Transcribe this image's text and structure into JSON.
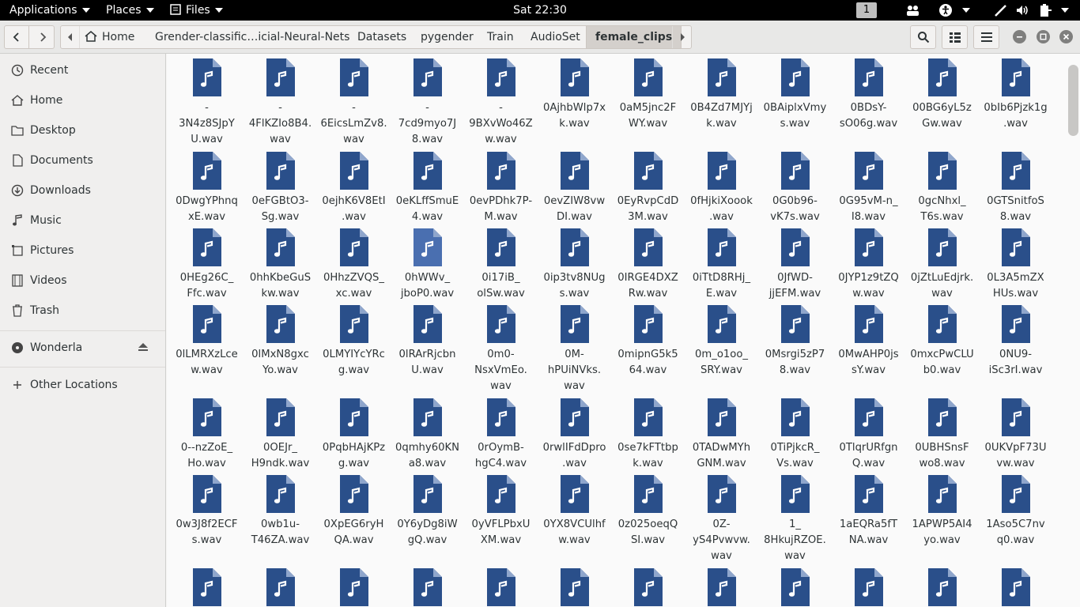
{
  "topbar": {
    "applications": "Applications",
    "places": "Places",
    "files": "Files",
    "clock": "Sat 22:30",
    "workspace": "1"
  },
  "header": {
    "breadcrumbs": [
      "Home",
      "Grender-classific…icial-Neural-Nets",
      "Datasets",
      "pygender",
      "Train",
      "AudioSet",
      "female_clips"
    ]
  },
  "sidebar": {
    "items": [
      {
        "label": "Recent",
        "icon": "clock-icon"
      },
      {
        "label": "Home",
        "icon": "home-icon"
      },
      {
        "label": "Desktop",
        "icon": "folder-icon"
      },
      {
        "label": "Documents",
        "icon": "document-icon"
      },
      {
        "label": "Downloads",
        "icon": "download-icon"
      },
      {
        "label": "Music",
        "icon": "music-icon"
      },
      {
        "label": "Pictures",
        "icon": "picture-icon"
      },
      {
        "label": "Videos",
        "icon": "video-icon"
      },
      {
        "label": "Trash",
        "icon": "trash-icon"
      }
    ],
    "devices": [
      {
        "label": "Wonderla",
        "icon": "drive-icon"
      }
    ],
    "other": {
      "label": "Other Locations",
      "icon": "plus-icon"
    }
  },
  "files": [
    "-3N4z8SJpYU.wav",
    "-4FlKZIo8B4.wav",
    "-6EicsLmZv8.wav",
    "-7cd9myo7J8.wav",
    "-9BXvWo46Zw.wav",
    "0AjhbWlp7xk.wav",
    "0aM5jnc2FWY.wav",
    "0B4Zd7MJYjk.wav",
    "0BAiplxVmys.wav",
    "0BDsY-sO06g.wav",
    "00BG6yL5zGw.wav",
    "0bIb6Pjzk1g.wav",
    "0DwgYPhnqxE.wav",
    "0eFGBtO3-Sg.wav",
    "0ejhK6V8EtI.wav",
    "0eKLffSmuE4.wav",
    "0evPDhk7P-M.wav",
    "0evZIW8vwDI.wav",
    "0EyRvpCdD3M.wav",
    "0fHjkiXoook.wav",
    "0G0b96-vK7s.wav",
    "0G95vM-n_I8.wav",
    "0gcNhxl_T6s.wav",
    "0GTSnitfoS8.wav",
    "0HEg26C_Ffc.wav",
    "0hhKbeGuSkw.wav",
    "0HhzZVQS_xc.wav",
    "0hWWv_jboP0.wav",
    "0i17iB_olSw.wav",
    "0ip3tv8NUgs.wav",
    "0IRGE4DXZRw.wav",
    "0iTtD8RHj_E.wav",
    "0JfWD-jjEFM.wav",
    "0JYP1z9tZQw.wav",
    "0jZtLuEdjrk.wav",
    "0L3A5mZXHUs.wav",
    "0lLMRXzLcew.wav",
    "0lMxN8gxcYo.wav",
    "0LMYIYcYRcg.wav",
    "0lRArRjcbnU.wav",
    "0m0-NsxVmEo.wav",
    "0M-hPUiNVks.wav",
    "0mipnG5k564.wav",
    "0m_o1oo_SRY.wav",
    "0Msrgi5zP78.wav",
    "0MwAHP0jssY.wav",
    "0mxcPwCLUb0.wav",
    "0NU9-iSc3rI.wav",
    "0--nzZoE_Ho.wav",
    "0OEJr_H9ndk.wav",
    "0PqbHAjKPzg.wav",
    "0qmhy60KNa8.wav",
    "0rOymB-hgC4.wav",
    "0rwlIFdDpro.wav",
    "0se7kFTtbpk.wav",
    "0TADwMYhGNM.wav",
    "0TiPjkcR_Vs.wav",
    "0TlqrURfgnQ.wav",
    "0UBHSnsFwo8.wav",
    "0UKVpF73Uvw.wav",
    "0w3J8f2ECFs.wav",
    "0wb1u-T46ZA.wav",
    "0XpEG6ryHQA.wav",
    "0Y6yDg8iWgQ.wav",
    "0yVFLPbxUXM.wav",
    "0YX8VCUlhfw.wav",
    "0z025oeqQSI.wav",
    "0Z-yS4Pvwvw.wav",
    "1_8HkujRZOE.wav",
    "1aEQRa5fTNA.wav",
    "1APWP5AI4yo.wav",
    "1Aso5C7nvq0.wav",
    "",
    "",
    "",
    "",
    "",
    "",
    "",
    "",
    "",
    "",
    "",
    ""
  ],
  "file_name_lines": [
    [
      "-",
      "3N4z8SJpY",
      "U.wav"
    ],
    [
      "-",
      "4FlKZIo8B4.",
      "wav"
    ],
    [
      "-",
      "6EicsLmZv8.",
      "wav"
    ],
    [
      "-",
      "7cd9myo7J",
      "8.wav"
    ],
    [
      "-",
      "9BXvWo46Z",
      "w.wav"
    ],
    [
      "0AjhbWlp7x",
      "k.wav"
    ],
    [
      "0aM5jnc2F",
      "WY.wav"
    ],
    [
      "0B4Zd7MJYj",
      "k.wav"
    ],
    [
      "0BAiplxVmy",
      "s.wav"
    ],
    [
      "0BDsY-",
      "sO06g.wav"
    ],
    [
      "00BG6yL5z",
      "Gw.wav"
    ],
    [
      "0bIb6Pjzk1g",
      ".wav"
    ],
    [
      "0DwgYPhnq",
      "xE.wav"
    ],
    [
      "0eFGBtO3-",
      "Sg.wav"
    ],
    [
      "0ejhK6V8EtI",
      ".wav"
    ],
    [
      "0eKLffSmuE",
      "4.wav"
    ],
    [
      "0evPDhk7P-",
      "M.wav"
    ],
    [
      "0evZIW8vw",
      "DI.wav"
    ],
    [
      "0EyRvpCdD",
      "3M.wav"
    ],
    [
      "0fHjkiXoook",
      ".wav"
    ],
    [
      "0G0b96-",
      "vK7s.wav"
    ],
    [
      "0G95vM-n_",
      "I8.wav"
    ],
    [
      "0gcNhxl_",
      "T6s.wav"
    ],
    [
      "0GTSnitfoS",
      "8.wav"
    ],
    [
      "0HEg26C_",
      "Ffc.wav"
    ],
    [
      "0hhKbeGuS",
      "kw.wav"
    ],
    [
      "0HhzZVQS_",
      "xc.wav"
    ],
    [
      "0hWWv_",
      "jboP0.wav"
    ],
    [
      "0i17iB_",
      "olSw.wav"
    ],
    [
      "0ip3tv8NUg",
      "s.wav"
    ],
    [
      "0IRGE4DXZ",
      "Rw.wav"
    ],
    [
      "0iTtD8RHj_",
      "E.wav"
    ],
    [
      "0JfWD-",
      "jjEFM.wav"
    ],
    [
      "0JYP1z9tZQ",
      "w.wav"
    ],
    [
      "0jZtLuEdjrk.",
      "wav"
    ],
    [
      "0L3A5mZX",
      "HUs.wav"
    ],
    [
      "0lLMRXzLce",
      "w.wav"
    ],
    [
      "0lMxN8gxc",
      "Yo.wav"
    ],
    [
      "0LMYIYcYRc",
      "g.wav"
    ],
    [
      "0lRArRjcbn",
      "U.wav"
    ],
    [
      "0m0-",
      "NsxVmEo.",
      "wav"
    ],
    [
      "0M-",
      "hPUiNVks.",
      "wav"
    ],
    [
      "0mipnG5k5",
      "64.wav"
    ],
    [
      "0m_o1oo_",
      "SRY.wav"
    ],
    [
      "0Msrgi5zP7",
      "8.wav"
    ],
    [
      "0MwAHP0js",
      "sY.wav"
    ],
    [
      "0mxcPwCLU",
      "b0.wav"
    ],
    [
      "0NU9-",
      "iSc3rI.wav"
    ],
    [
      "0--nzZoE_",
      "Ho.wav"
    ],
    [
      "0OEJr_",
      "H9ndk.wav"
    ],
    [
      "0PqbHAjKPz",
      "g.wav"
    ],
    [
      "0qmhy60KN",
      "a8.wav"
    ],
    [
      "0rOymB-",
      "hgC4.wav"
    ],
    [
      "0rwlIFdDpro",
      ".wav"
    ],
    [
      "0se7kFTtbp",
      "k.wav"
    ],
    [
      "0TADwMYh",
      "GNM.wav"
    ],
    [
      "0TiPjkcR_",
      "Vs.wav"
    ],
    [
      "0TlqrURfgn",
      "Q.wav"
    ],
    [
      "0UBHSnsF",
      "wo8.wav"
    ],
    [
      "0UKVpF73U",
      "vw.wav"
    ],
    [
      "0w3J8f2ECF",
      "s.wav"
    ],
    [
      "0wb1u-",
      "T46ZA.wav"
    ],
    [
      "0XpEG6ryH",
      "QA.wav"
    ],
    [
      "0Y6yDg8iW",
      "gQ.wav"
    ],
    [
      "0yVFLPbxU",
      "XM.wav"
    ],
    [
      "0YX8VCUlhf",
      "w.wav"
    ],
    [
      "0z025oeqQ",
      "SI.wav"
    ],
    [
      "0Z-",
      "yS4Pvwvw.",
      "wav"
    ],
    [
      "1_",
      "8HkujRZOE.",
      "wav"
    ],
    [
      "1aEQRa5fT",
      "NA.wav"
    ],
    [
      "1APWP5AI4",
      "yo.wav"
    ],
    [
      "1Aso5C7nv",
      "q0.wav"
    ],
    [],
    [],
    [],
    [],
    [],
    [],
    [],
    [],
    [],
    [],
    [],
    []
  ],
  "colors": {
    "file_icon": "#2a4f8a",
    "file_icon_selected": "#4a6fb0"
  }
}
